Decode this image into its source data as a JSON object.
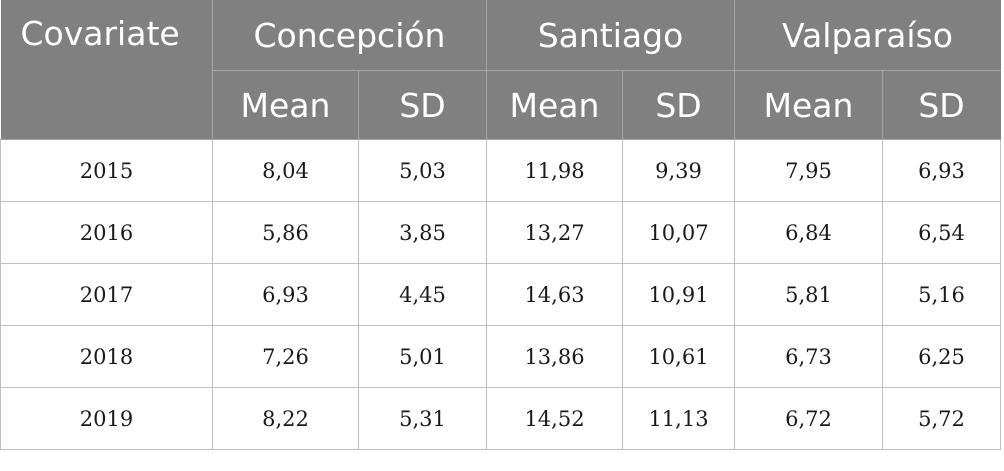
{
  "table": {
    "header": {
      "first_column": "Covariate",
      "groups": [
        "Concepción",
        "Santiago",
        "Valparaíso"
      ],
      "subheaders": [
        "Mean",
        "SD",
        "Mean",
        "SD",
        "Mean",
        "SD"
      ]
    },
    "rows": [
      {
        "year": "2015",
        "values": [
          "8,04",
          "5,03",
          "11,98",
          "9,39",
          "7,95",
          "6,93"
        ]
      },
      {
        "year": "2016",
        "values": [
          "5,86",
          "3,85",
          "13,27",
          "10,07",
          "6,84",
          "6,54"
        ]
      },
      {
        "year": "2017",
        "values": [
          "6,93",
          "4,45",
          "14,63",
          "10,91",
          "5,81",
          "5,16"
        ]
      },
      {
        "year": "2018",
        "values": [
          "7,26",
          "5,01",
          "13,86",
          "10,61",
          "6,73",
          "6,25"
        ]
      },
      {
        "year": "2019",
        "values": [
          "8,22",
          "5,31",
          "14,52",
          "11,13",
          "6,72",
          "5,72"
        ]
      }
    ]
  },
  "colors": {
    "header_background": "#808080",
    "header_text": "#ffffff",
    "grid_line": "#bfbfbf"
  }
}
